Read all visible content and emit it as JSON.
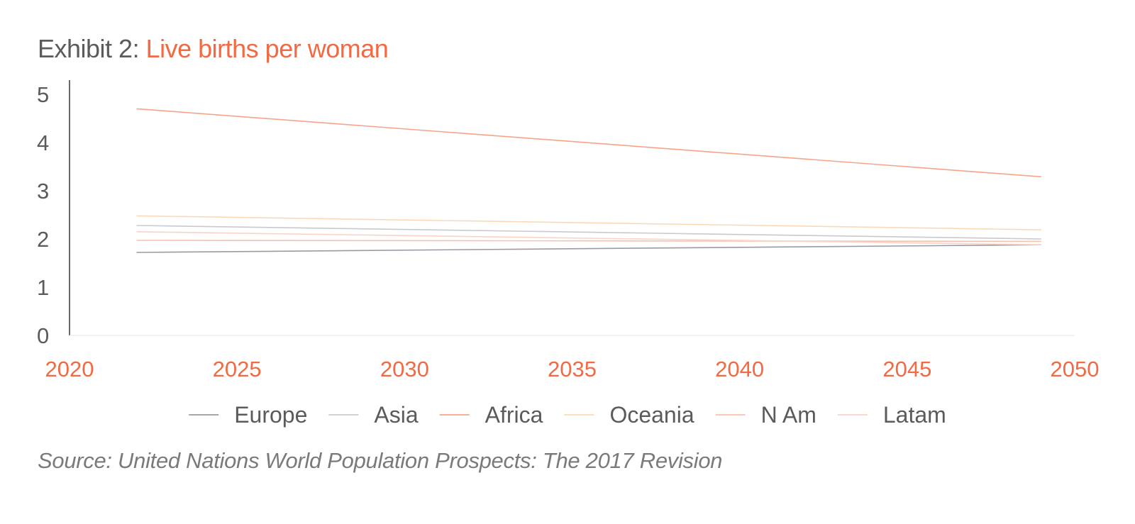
{
  "title": {
    "prefix": "Exhibit 2:",
    "main": "Live births per woman"
  },
  "source": "Source: United Nations World Population Prospects: The 2017 Revision",
  "colors": {
    "axis_text": "#5b5b5b",
    "accent": "#f26a44",
    "x_tick_text": "#f26a44"
  },
  "chart_data": {
    "type": "line",
    "title": "Live births per woman",
    "xlabel": "",
    "ylabel": "",
    "xlim": [
      2020,
      2050
    ],
    "ylim": [
      0,
      5
    ],
    "x_ticks": [
      "2020",
      "2025",
      "2030",
      "2035",
      "2040",
      "2045",
      "2050"
    ],
    "y_ticks": [
      "0",
      "1",
      "2",
      "3",
      "4",
      "5"
    ],
    "x": [
      2022,
      2049
    ],
    "grid": false,
    "legend_placement": "bottom",
    "series": [
      {
        "name": "Europe",
        "values": [
          1.72,
          1.88
        ],
        "color": "#9a9aa3"
      },
      {
        "name": "Asia",
        "values": [
          2.28,
          2.0
        ],
        "color": "#c9c9d0"
      },
      {
        "name": "Africa",
        "values": [
          4.7,
          3.29
        ],
        "color": "#f7a48a"
      },
      {
        "name": "Oceania",
        "values": [
          2.48,
          2.19
        ],
        "color": "#fbd9b8"
      },
      {
        "name": "N Am",
        "values": [
          1.97,
          1.95
        ],
        "color": "#f8c1ad"
      },
      {
        "name": "Latam",
        "values": [
          2.15,
          1.88
        ],
        "color": "#fcd2c6"
      }
    ]
  }
}
